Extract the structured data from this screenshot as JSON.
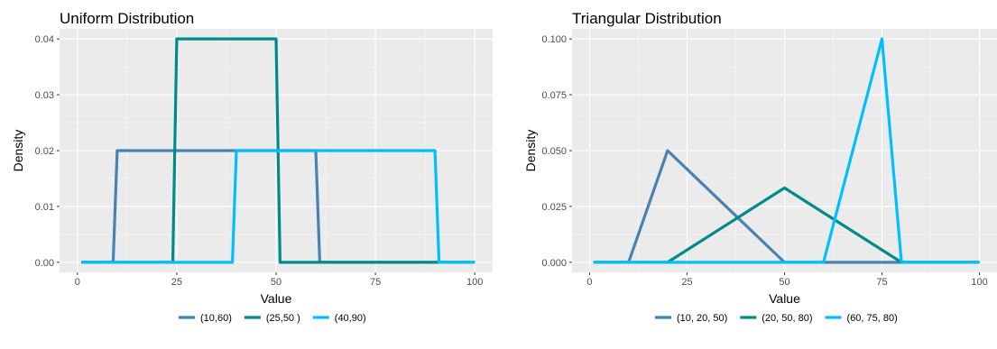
{
  "chart_data": [
    {
      "type": "line",
      "title": "Uniform Distribution",
      "xlabel": "Value",
      "ylabel": "Density",
      "xlim": [
        0,
        100
      ],
      "ylim": [
        0,
        0.04
      ],
      "xticks": [
        0,
        25,
        50,
        75,
        100
      ],
      "yticks": [
        0,
        0.01,
        0.02,
        0.03,
        0.04
      ],
      "ytick_labels": [
        "0.00",
        "0.01",
        "0.02",
        "0.03",
        "0.04"
      ],
      "grid": true,
      "legend": "bottom",
      "series": [
        {
          "name": "(10,60)",
          "color": "#4682B4",
          "x": [
            1,
            9,
            10,
            60,
            61,
            100
          ],
          "y": [
            0,
            0,
            0.02,
            0.02,
            0,
            0
          ]
        },
        {
          "name": "(25,50 )",
          "color": "#008B8B",
          "x": [
            1,
            24,
            25,
            50,
            51,
            100
          ],
          "y": [
            0,
            0,
            0.04,
            0.04,
            0,
            0
          ]
        },
        {
          "name": "(40,90)",
          "color": "#00BFFF",
          "x": [
            1,
            39,
            40,
            90,
            91,
            100
          ],
          "y": [
            0,
            0,
            0.02,
            0.02,
            0,
            0
          ]
        }
      ]
    },
    {
      "type": "line",
      "title": "Triangular Distribution",
      "xlabel": "Value",
      "ylabel": "Density",
      "xlim": [
        0,
        100
      ],
      "ylim": [
        0,
        0.1
      ],
      "xticks": [
        0,
        25,
        50,
        75,
        100
      ],
      "yticks": [
        0,
        0.025,
        0.05,
        0.075,
        0.1
      ],
      "ytick_labels": [
        "0.000",
        "0.025",
        "0.050",
        "0.075",
        "0.100"
      ],
      "grid": true,
      "legend": "bottom",
      "series": [
        {
          "name": "(10, 20, 50)",
          "color": "#4682B4",
          "x": [
            1,
            10,
            20,
            50,
            100
          ],
          "y": [
            0,
            0,
            0.05,
            0,
            0
          ]
        },
        {
          "name": "(20, 50, 80)",
          "color": "#008B8B",
          "x": [
            1,
            20,
            50,
            80,
            100
          ],
          "y": [
            0,
            0,
            0.0333,
            0,
            0
          ]
        },
        {
          "name": "(60, 75, 80)",
          "color": "#00BFFF",
          "x": [
            1,
            60,
            75,
            80,
            100
          ],
          "y": [
            0,
            0,
            0.1,
            0,
            0
          ]
        }
      ]
    }
  ]
}
